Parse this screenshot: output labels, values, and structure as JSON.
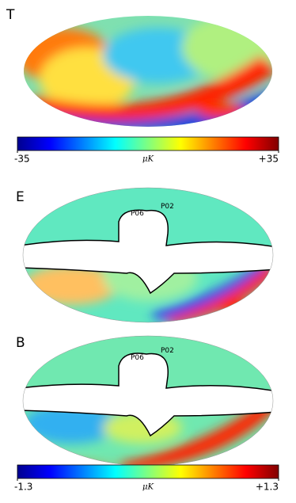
{
  "panels": [
    {
      "label": "T"
    },
    {
      "label": "E",
      "regions": [
        "P06",
        "P02"
      ]
    },
    {
      "label": "B",
      "regions": [
        "P06",
        "P02"
      ]
    }
  ],
  "colorbars": [
    {
      "lim": [
        -35,
        35
      ],
      "ticks": [
        -35,
        {
          "value": 35,
          "label": "+35"
        }
      ],
      "unit": "μK"
    },
    {
      "lim": [
        -1.3,
        1.3
      ],
      "ticks": [
        -1.3,
        {
          "value": 1.3,
          "label": "+1.3"
        }
      ],
      "unit": "μK"
    }
  ]
}
